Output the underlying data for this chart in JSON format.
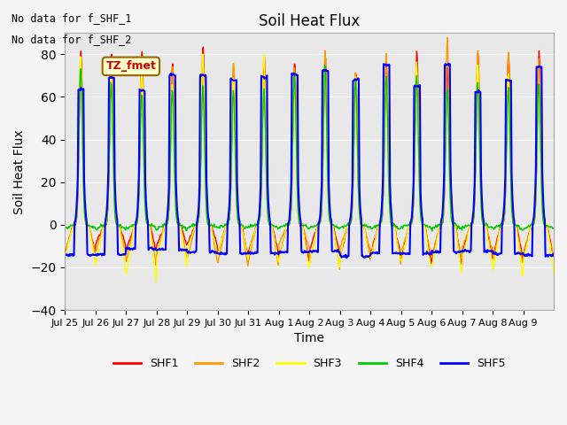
{
  "title": "Soil Heat Flux",
  "xlabel": "Time",
  "ylabel": "Soil Heat Flux",
  "ylim": [
    -40,
    90
  ],
  "yticks": [
    -40,
    -20,
    0,
    20,
    40,
    60,
    80
  ],
  "bg_color": "#e8e8e8",
  "fig_color": "#f5f5f5",
  "annotations": [
    "No data for f_SHF_1",
    "No data for f_SHF_2"
  ],
  "legend_entries": [
    "SHF1",
    "SHF2",
    "SHF3",
    "SHF4",
    "SHF5"
  ],
  "legend_colors": [
    "#ff0000",
    "#ff9900",
    "#ffff00",
    "#00cc00",
    "#0000ff"
  ],
  "tz_label": "TZ_fmet",
  "tz_bg": "#ffffcc",
  "tz_border": "#996600",
  "tz_text_color": "#cc0000",
  "x_tick_labels": [
    "Jul 25",
    "Jul 26",
    "Jul 27",
    "Jul 28",
    "Jul 29",
    "Jul 30",
    "Jul 31",
    "Aug 1",
    "Aug 2",
    "Aug 3",
    "Aug 4",
    "Aug 5",
    "Aug 6",
    "Aug 7",
    "Aug 8",
    "Aug 9"
  ],
  "n_days": 16
}
